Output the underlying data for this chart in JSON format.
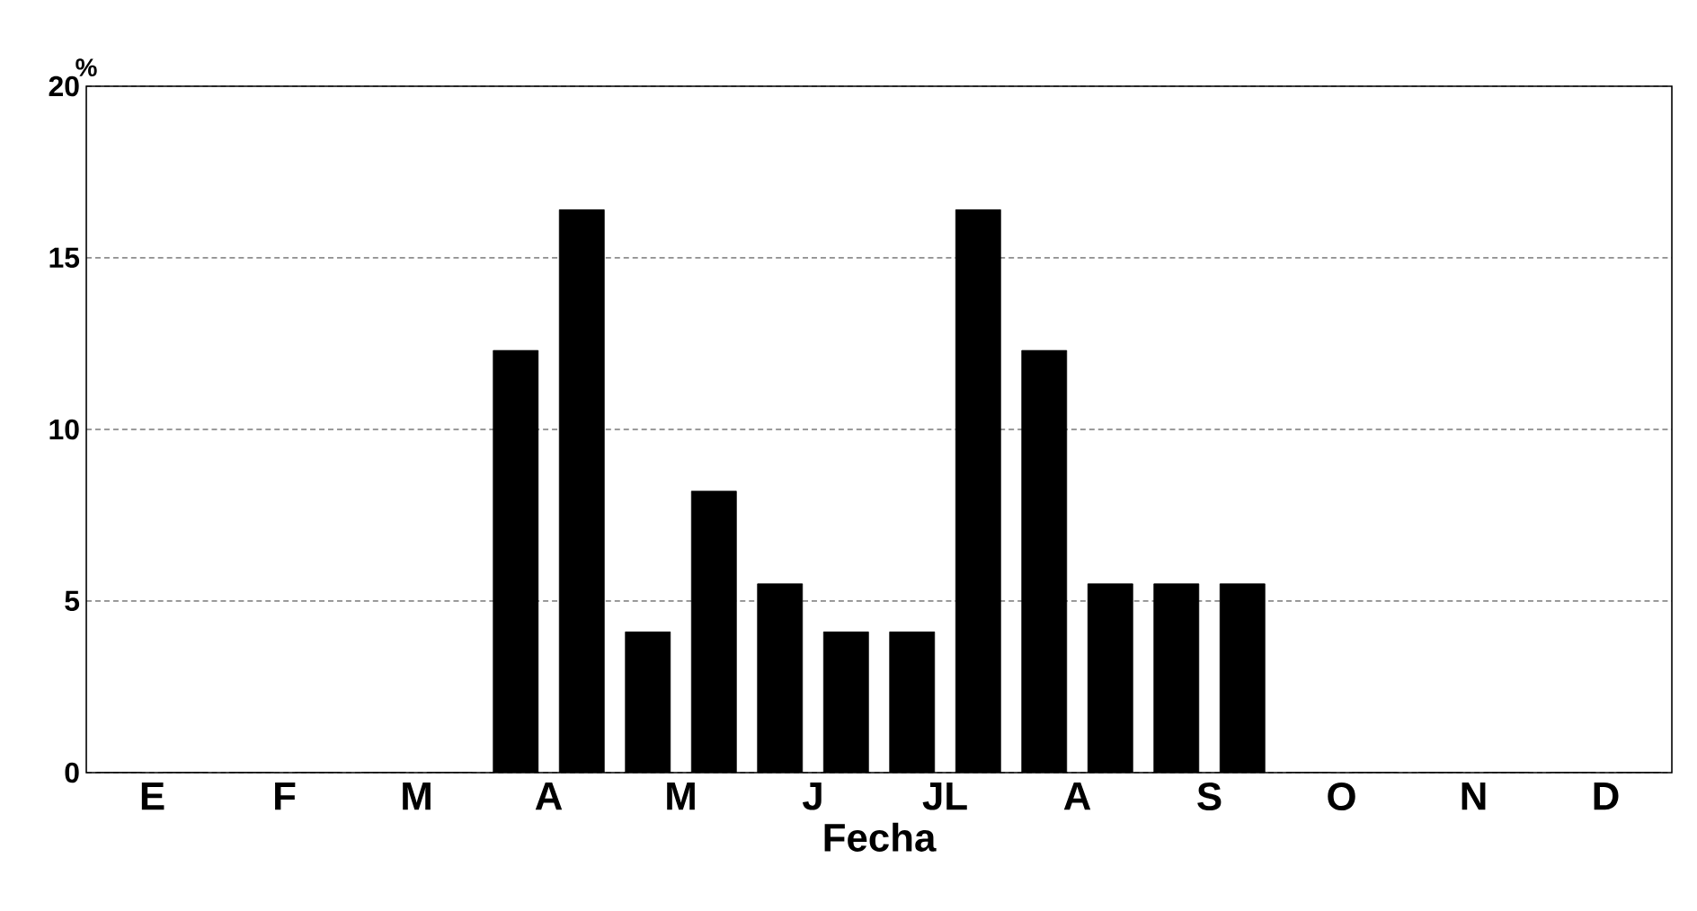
{
  "chart_data": {
    "type": "bar",
    "xlabel": "Fecha",
    "ylabel": "%",
    "grid": "y",
    "categories": [
      "E",
      "F",
      "M",
      "A",
      "M",
      "J",
      "JL",
      "A",
      "S",
      "O",
      "N",
      "D"
    ],
    "series": [
      {
        "color": "#000000",
        "values": [
          0,
          0,
          0,
          12.3,
          4.1,
          5.5,
          4.1,
          12.3,
          5.5,
          0,
          0,
          0
        ]
      },
      {
        "color": "#000000",
        "values": [
          0,
          0,
          0,
          16.4,
          8.2,
          4.1,
          16.4,
          5.5,
          5.5,
          0,
          0,
          0
        ]
      }
    ],
    "ylim": [
      0,
      20
    ],
    "yticks": [
      0,
      5,
      10,
      15,
      20
    ]
  }
}
